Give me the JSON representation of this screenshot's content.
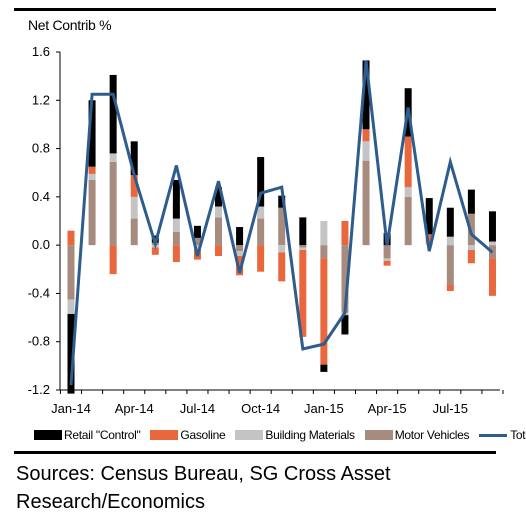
{
  "chart_data": {
    "type": "bar",
    "stacked": true,
    "ylabel": "Net Contrib %",
    "ylim": [
      -1.2,
      1.6
    ],
    "yticks": [
      "1.6",
      "1.2",
      "0.8",
      "0.4",
      "0.0",
      "-0.4",
      "-0.8",
      "-1.2"
    ],
    "ytick_values": [
      1.6,
      1.2,
      0.8,
      0.4,
      0.0,
      -0.4,
      -0.8,
      -1.2
    ],
    "xtick_labels": [
      "Jan-14",
      "Apr-14",
      "Jul-14",
      "Oct-14",
      "Jan-15",
      "Apr-15",
      "Jul-15"
    ],
    "xtick_months": [
      0,
      3,
      6,
      9,
      12,
      15,
      18
    ],
    "months": [
      "Jan-14",
      "Feb-14",
      "Mar-14",
      "Apr-14",
      "May-14",
      "Jun-14",
      "Jul-14",
      "Aug-14",
      "Sep-14",
      "Oct-14",
      "Nov-14",
      "Dec-14",
      "Jan-15",
      "Feb-15",
      "Mar-15",
      "Apr-15",
      "May-15",
      "Jun-15",
      "Jul-15",
      "Aug-15",
      "Sep-15"
    ],
    "series": [
      {
        "name": "Retail \"Control\"",
        "color": "#000000",
        "values": [
          -0.66,
          0.55,
          0.65,
          0.28,
          0.06,
          0.32,
          0.1,
          0.16,
          0.15,
          0.41,
          0.1,
          0.23,
          -0.06,
          -0.16,
          0.57,
          0.1,
          0.4,
          0.3,
          0.24,
          0.2,
          0.25
        ]
      },
      {
        "name": "Gasoline",
        "color": "#e8673c",
        "values": [
          0.12,
          0.06,
          -0.24,
          0.18,
          -0.06,
          -0.14,
          -0.08,
          -0.09,
          -0.16,
          -0.22,
          -0.24,
          -0.72,
          -0.88,
          0.2,
          0.1,
          -0.04,
          0.42,
          0.07,
          -0.05,
          -0.11,
          -0.31
        ]
      },
      {
        "name": "Building Materials",
        "color": "#c4c4c4",
        "values": [
          -0.12,
          0.05,
          0.07,
          0.18,
          -0.02,
          0.11,
          -0.04,
          0.09,
          -0.04,
          0.1,
          -0.06,
          -0.02,
          0.2,
          -0.02,
          0.16,
          -0.02,
          0.08,
          0.02,
          0.07,
          -0.04,
          0.03
        ]
      },
      {
        "name": "Motor Vehicles",
        "color": "#a88b7f",
        "values": [
          -0.45,
          0.54,
          0.69,
          0.22,
          0.02,
          0.11,
          0.06,
          0.23,
          -0.05,
          0.22,
          0.31,
          -0.02,
          -0.11,
          -0.56,
          0.7,
          -0.11,
          0.4,
          0.0,
          -0.33,
          0.26,
          -0.11
        ]
      },
      {
        "name": "Total",
        "color": "#2e5c8c",
        "type": "line",
        "values": [
          -1.16,
          1.25,
          1.25,
          0.58,
          0.01,
          0.66,
          -0.09,
          0.53,
          -0.23,
          0.43,
          0.48,
          -0.86,
          -0.82,
          -0.56,
          1.53,
          0.0,
          1.14,
          -0.05,
          0.69,
          0.09,
          -0.06
        ]
      }
    ],
    "legend_position": "bottom",
    "grid": false
  },
  "sources": "Sources: Census Bureau, SG Cross Asset Research/Economics"
}
